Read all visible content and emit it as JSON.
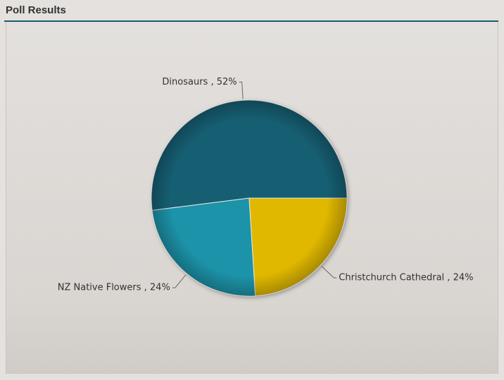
{
  "chart_data": {
    "type": "pie",
    "title": "Poll Results",
    "values": [
      52,
      24,
      24
    ],
    "value_labels": [
      "Dinosaurs , 52%",
      "NZ Native Flowers , 24%",
      "Christchurch Cathedral , 24%"
    ],
    "colors": [
      "#175e73",
      "#1a93a8",
      "#e0b800"
    ]
  }
}
